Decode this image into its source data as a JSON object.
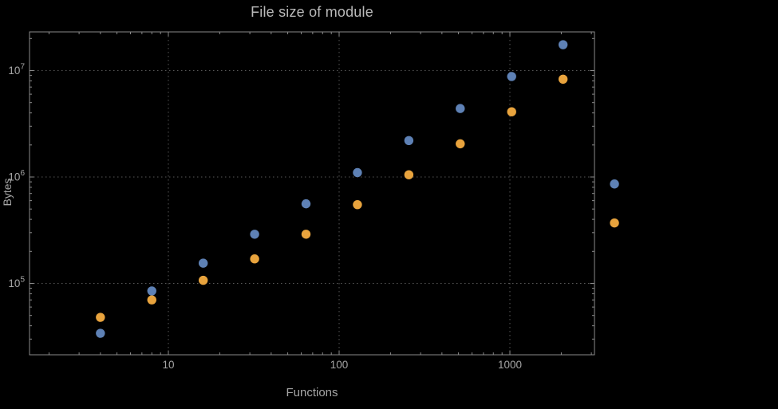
{
  "chart_data": {
    "type": "scatter",
    "title": "File size of module",
    "xlabel": "Functions",
    "ylabel": "Bytes",
    "x_scale": "log",
    "y_scale": "log",
    "grid": "dotted-at-decades",
    "legend": "none",
    "xlim": [
      1.52,
      3200
    ],
    "ylim": [
      21500,
      23000000
    ],
    "x_ticks": [
      {
        "value": 10,
        "label": "10"
      },
      {
        "value": 100,
        "label": "100"
      },
      {
        "value": 1000,
        "label": "1000"
      }
    ],
    "y_ticks": [
      {
        "value": 100000,
        "mantissa": "10",
        "exponent": "5"
      },
      {
        "value": 1000000,
        "mantissa": "10",
        "exponent": "6"
      },
      {
        "value": 10000000,
        "mantissa": "10",
        "exponent": "7"
      }
    ],
    "x": [
      4,
      8,
      16,
      32,
      64,
      128,
      256,
      512,
      1024,
      2048,
      4096
    ],
    "series": [
      {
        "name": "series-1-blue",
        "color": "#5e81b5",
        "values": [
          34000,
          85000,
          155000,
          290000,
          560000,
          1100000,
          2200000,
          4400000,
          8800000,
          17500000,
          860000
        ]
      },
      {
        "name": "series-2-orange",
        "color": "#e8a33d",
        "values": [
          48000,
          70000,
          107000,
          170000,
          290000,
          550000,
          1050000,
          2050000,
          4100000,
          8300000,
          370000
        ]
      }
    ],
    "colors": {
      "background": "#000000",
      "frame": "#8a8a8a",
      "grid": "#575757",
      "tick_text": "#a6a6a6",
      "title_text": "#b9b9b9",
      "axis_label_text": "#a6a6a6"
    }
  }
}
